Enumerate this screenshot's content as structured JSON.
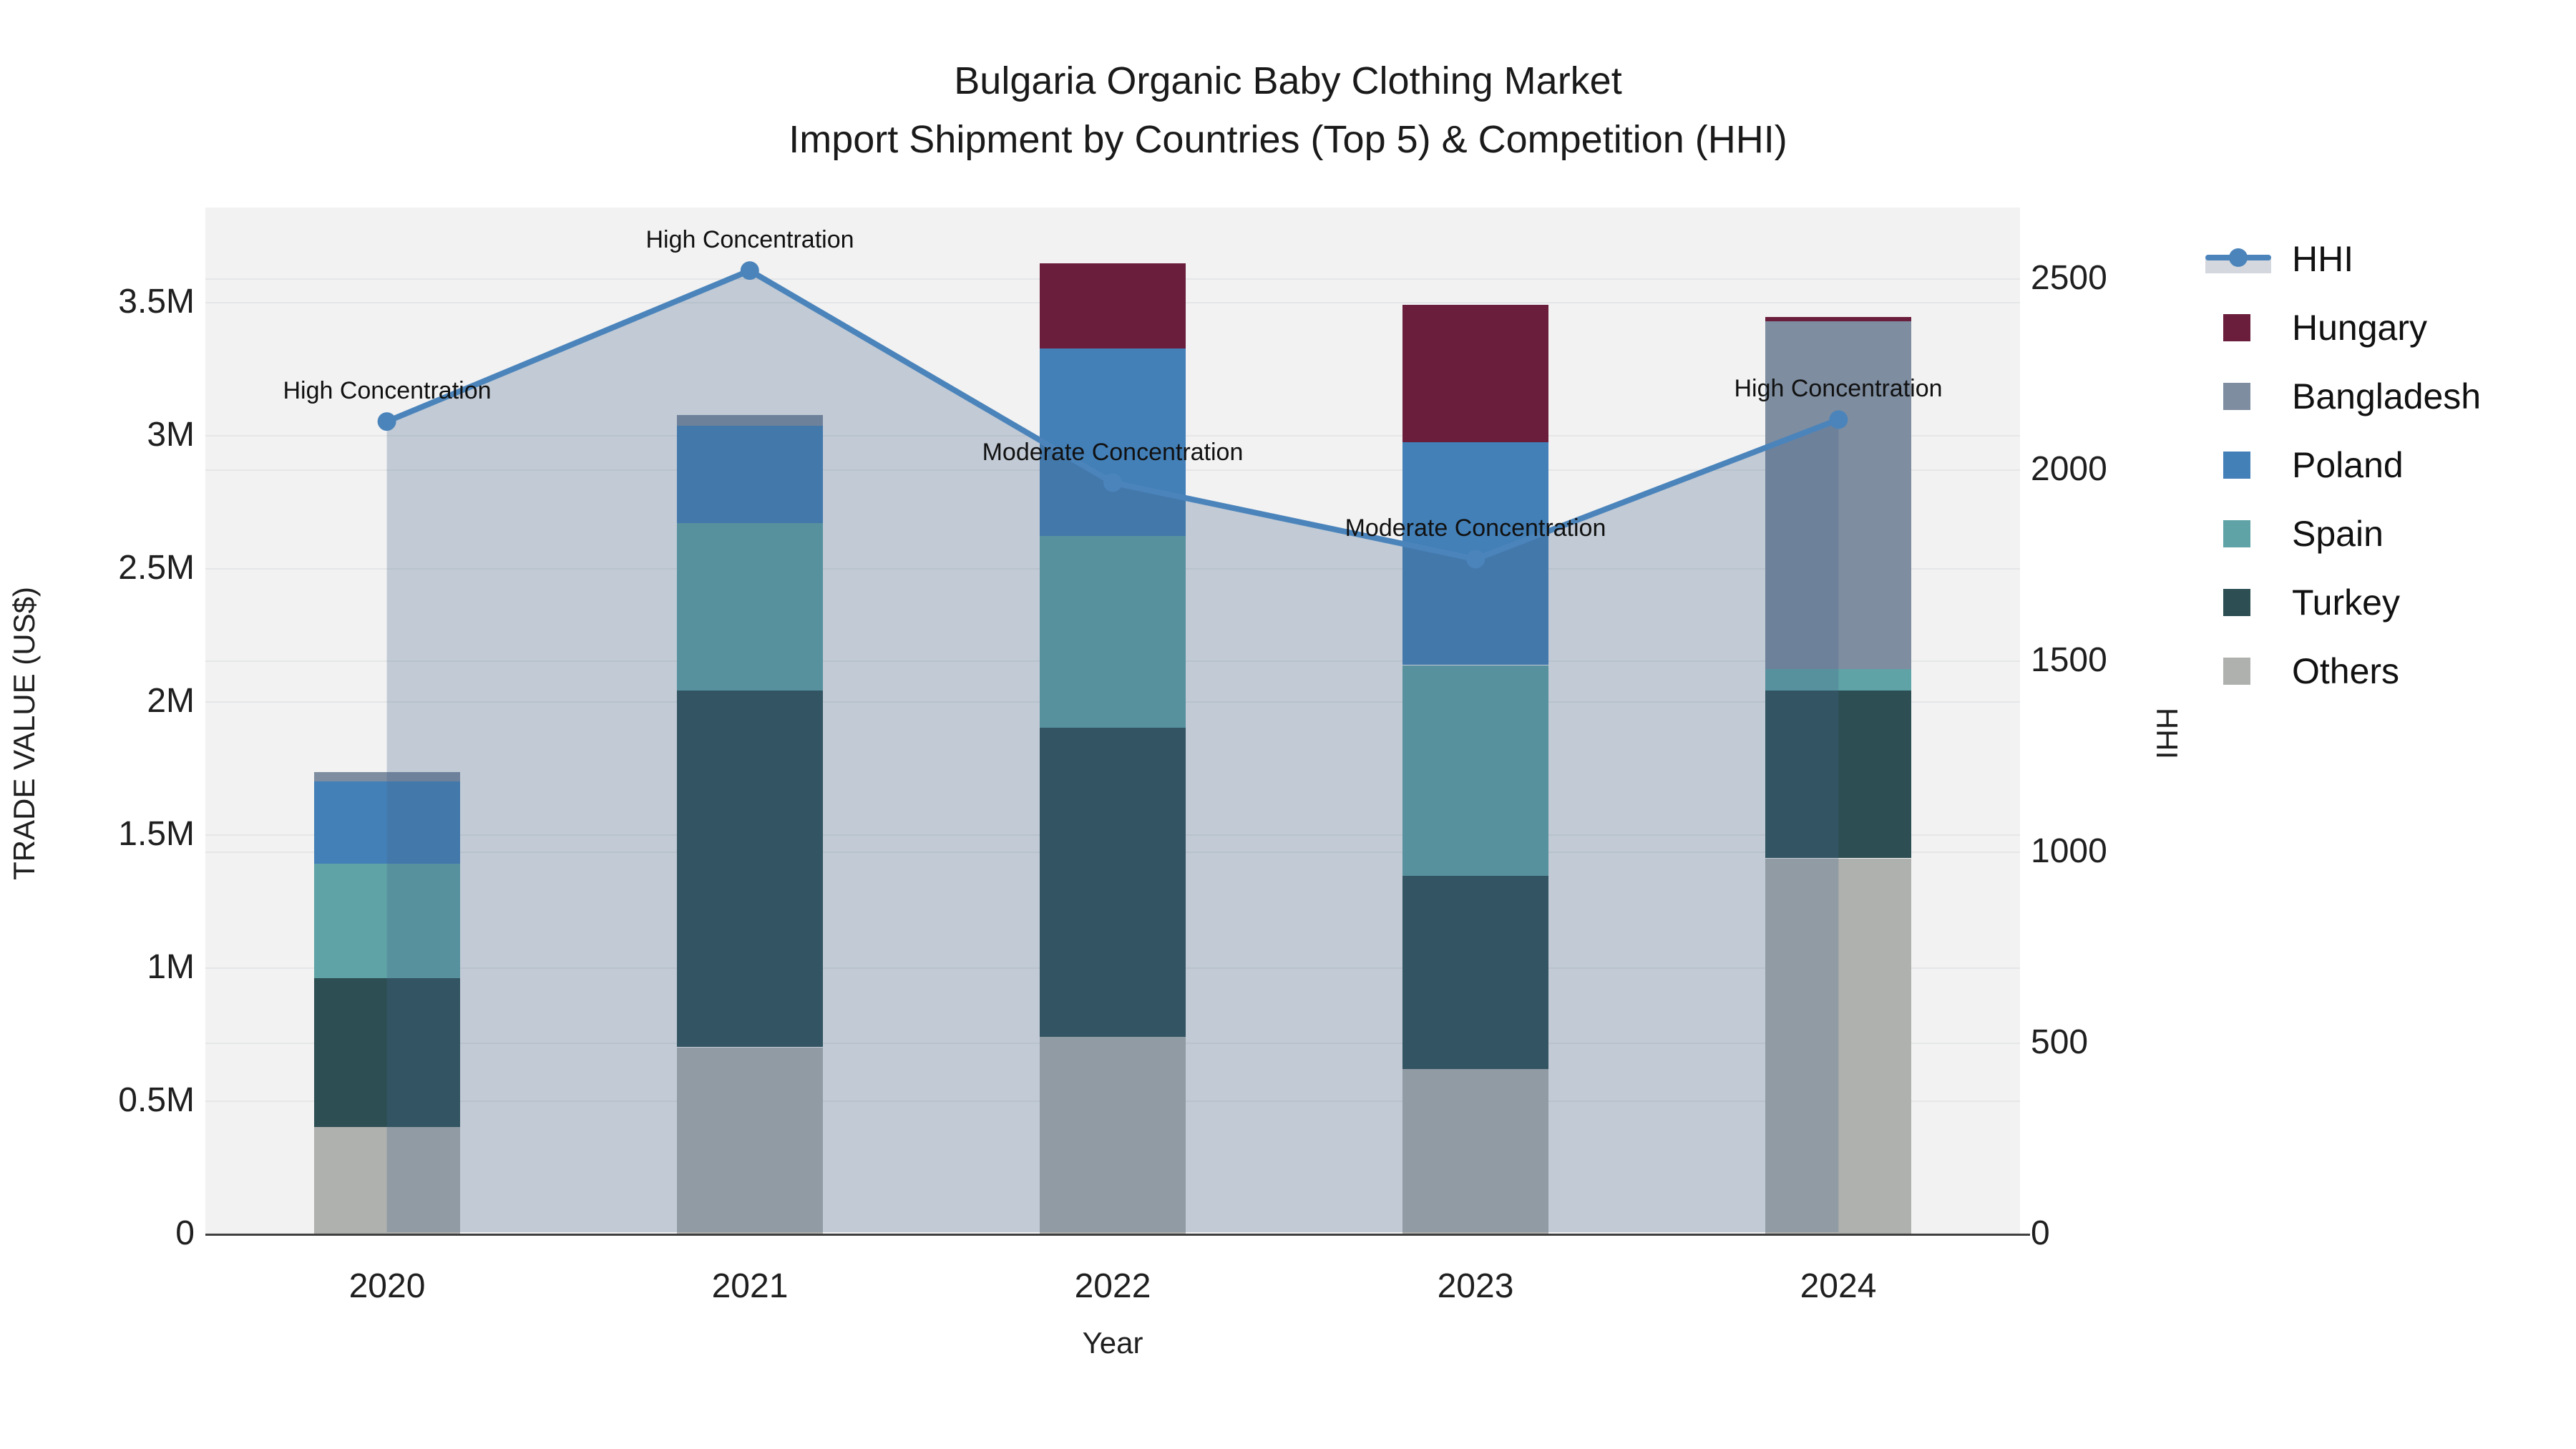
{
  "title": {
    "line1": "Bulgaria Organic Baby Clothing Market",
    "line2": "Import Shipment by Countries (Top 5) & Competition (HHI)"
  },
  "axes": {
    "left_title": "TRADE VALUE (US$)",
    "bottom_title": "Year",
    "right_title": "HHI",
    "left_ticks": [
      {
        "label": "0",
        "value": 0
      },
      {
        "label": "0.5M",
        "value": 500000
      },
      {
        "label": "1M",
        "value": 1000000
      },
      {
        "label": "1.5M",
        "value": 1500000
      },
      {
        "label": "2M",
        "value": 2000000
      },
      {
        "label": "2.5M",
        "value": 2500000
      },
      {
        "label": "3M",
        "value": 3000000
      },
      {
        "label": "3.5M",
        "value": 3500000
      }
    ],
    "right_ticks": [
      {
        "label": "0",
        "value": 0
      },
      {
        "label": "500",
        "value": 500
      },
      {
        "label": "1000",
        "value": 1000
      },
      {
        "label": "1500",
        "value": 1500
      },
      {
        "label": "2000",
        "value": 2000
      },
      {
        "label": "2500",
        "value": 2500
      }
    ]
  },
  "chart_data": {
    "type": "bar+line dual-axis (stacked bars with HHI area line)",
    "title": "Bulgaria Organic Baby Clothing Market — Import Shipment by Countries (Top 5) & Competition (HHI)",
    "xlabel": "Year",
    "ylabel_left": "TRADE VALUE (US$)",
    "ylabel_right": "HHI",
    "categories": [
      "2020",
      "2021",
      "2022",
      "2023",
      "2024"
    ],
    "stack_order": [
      "Others",
      "Turkey",
      "Spain",
      "Poland",
      "Bangladesh",
      "Hungary"
    ],
    "series": [
      {
        "name": "Others",
        "color": "#afb1ae",
        "values": [
          400000,
          700000,
          740000,
          620000,
          1410000
        ]
      },
      {
        "name": "Turkey",
        "color": "#2d4e52",
        "values": [
          560000,
          1340000,
          1160000,
          725000,
          630000
        ]
      },
      {
        "name": "Spain",
        "color": "#5fa3a6",
        "values": [
          430000,
          630000,
          720000,
          790000,
          80000
        ]
      },
      {
        "name": "Poland",
        "color": "#4380b8",
        "values": [
          310000,
          365000,
          705000,
          840000,
          0
        ]
      },
      {
        "name": "Bangladesh",
        "color": "#7e8da0",
        "values": [
          35000,
          40000,
          0,
          0,
          1310000
        ]
      },
      {
        "name": "Hungary",
        "color": "#6b1d3c",
        "values": [
          0,
          0,
          320000,
          515000,
          15000
        ]
      }
    ],
    "bar_totals": [
      1735000,
      3075000,
      3645000,
      3490000,
      3445000
    ],
    "hhi": {
      "name": "HHI",
      "color": "#4b84bb",
      "area_color": "rgba(70,100,140,0.28)",
      "values": [
        2125,
        2520,
        1965,
        1765,
        2130
      ]
    },
    "annotations": [
      "High Concentration",
      "High Concentration",
      "Moderate Concentration",
      "Moderate Concentration",
      "High Concentration"
    ],
    "ylim_left": [
      0,
      3855000
    ],
    "ylim_right": [
      0,
      2685
    ],
    "grid": "horizontal gridlines for both axes",
    "legend_position": "right"
  },
  "legend": {
    "items": [
      "HHI",
      "Hungary",
      "Bangladesh",
      "Poland",
      "Spain",
      "Turkey",
      "Others"
    ]
  }
}
